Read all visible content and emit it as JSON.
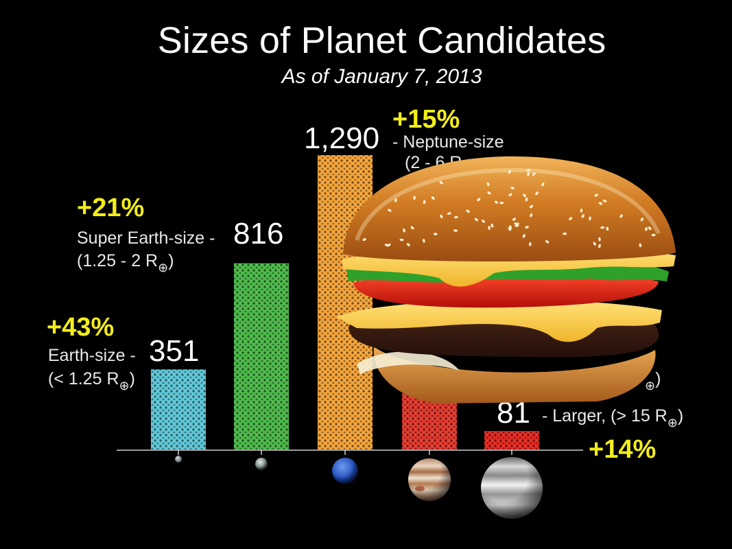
{
  "title": "Sizes of Planet Candidates",
  "subtitle": "As of January 7, 2013",
  "colors": {
    "earth": "#5fc6d6",
    "super_earth": "#4db84a",
    "neptune": "#f2a33a",
    "jupiter": "#e23a2e",
    "larger": "#e32a22",
    "percent": "#f3ee1a"
  },
  "chart_data": {
    "type": "bar",
    "categories": [
      "Earth-size",
      "Super Earth-size",
      "Neptune-size",
      "Jupiter-size",
      "Larger"
    ],
    "values": [
      351,
      816,
      1290,
      246,
      81
    ],
    "ylim": [
      0,
      1300
    ],
    "bar_colors": [
      "#5fc6d6",
      "#4db84a",
      "#f2a33a",
      "#e23a2e",
      "#e32a22"
    ],
    "bar_labels": {
      "earth": {
        "pct": "+43%",
        "name": "Earth-size -",
        "value": "351",
        "range": "(< 1.25 R",
        "range_end": ")"
      },
      "super_earth": {
        "pct": "+21%",
        "name": "Super Earth-size -",
        "value": "816",
        "range": "(1.25 - 2 R",
        "range_end": ")"
      },
      "neptune": {
        "pct": "+15%",
        "value": "1,290",
        "name": "- Neptune-size",
        "range": "(2 - 6 R"
      },
      "jupiter": {
        "range_end": ")"
      },
      "larger": {
        "pct": "+14%",
        "value": "81",
        "name": "- Larger, (> 15 R",
        "range_end": ")"
      }
    },
    "earth_symbol": "⊕",
    "icons": [
      "earth-planet-icon",
      "super-earth-planet-icon",
      "neptune-planet-icon",
      "jupiter-planet-icon",
      "larger-planet-icon",
      "hamburger-overlay-icon"
    ]
  }
}
